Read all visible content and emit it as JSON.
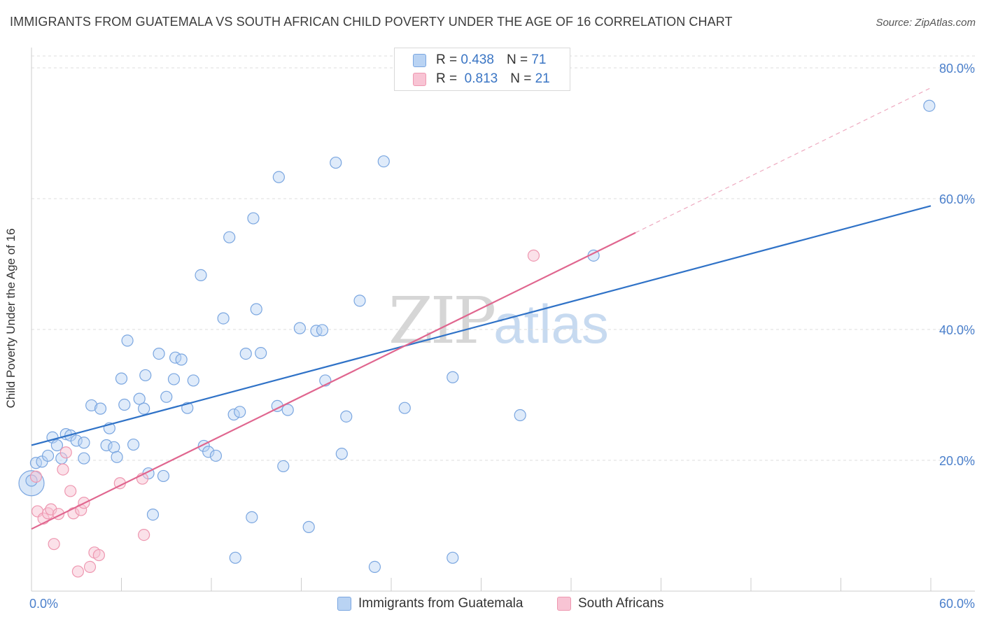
{
  "title": "IMMIGRANTS FROM GUATEMALA VS SOUTH AFRICAN CHILD POVERTY UNDER THE AGE OF 16 CORRELATION CHART",
  "source": "Source: ZipAtlas.com",
  "watermark": {
    "part1": "ZIP",
    "part2": "atlas"
  },
  "legend_top": {
    "rows": [
      {
        "r_label": "R =",
        "r_value": "0.438",
        "n_label": "N =",
        "n_value": "71"
      },
      {
        "r_label": "R =",
        "r_value": "0.813",
        "n_label": "N =",
        "n_value": "21"
      }
    ]
  },
  "colors": {
    "guatemala_fill": "#b9d3f3",
    "guatemala_stroke": "#7aa6e0",
    "guatemala_line": "#2f72c7",
    "sa_fill": "#f8c4d4",
    "sa_stroke": "#ee97b0",
    "sa_line": "#e0668f",
    "axis_label": "#4a7fcb",
    "grid": "#dddddd"
  },
  "chart_data": {
    "type": "scatter",
    "title": "IMMIGRANTS FROM GUATEMALA VS SOUTH AFRICAN CHILD POVERTY UNDER THE AGE OF 16 CORRELATION CHART",
    "xlabel": "",
    "ylabel": "Child Poverty Under the Age of 16",
    "xlim": [
      0,
      60
    ],
    "ylim": [
      0,
      80
    ],
    "x_tick_labels": [
      "0.0%",
      "60.0%"
    ],
    "y_tick_labels": [
      "20.0%",
      "40.0%",
      "60.0%",
      "80.0%"
    ],
    "y_ticks": [
      20,
      40,
      60,
      80
    ],
    "grid": true,
    "legend_position": "bottom",
    "series": [
      {
        "name": "Immigrants from Guatemala",
        "r": 0.438,
        "n": 71,
        "trend": {
          "x": [
            0,
            60
          ],
          "y": [
            22.3,
            58.9
          ],
          "extended": false
        },
        "points": [
          [
            0.0,
            16.5
          ],
          [
            0.3,
            19.6
          ],
          [
            0.7,
            19.8
          ],
          [
            1.1,
            20.7
          ],
          [
            1.4,
            23.5
          ],
          [
            1.7,
            22.3
          ],
          [
            2.0,
            20.3
          ],
          [
            2.3,
            24.0
          ],
          [
            2.6,
            23.8
          ],
          [
            3.0,
            23.0
          ],
          [
            3.5,
            22.7
          ],
          [
            3.5,
            20.3
          ],
          [
            4.0,
            28.4
          ],
          [
            4.6,
            27.9
          ],
          [
            5.0,
            22.3
          ],
          [
            5.2,
            24.9
          ],
          [
            5.5,
            22.0
          ],
          [
            5.7,
            20.5
          ],
          [
            6.0,
            32.5
          ],
          [
            6.2,
            28.5
          ],
          [
            6.4,
            38.3
          ],
          [
            6.8,
            22.4
          ],
          [
            7.2,
            29.4
          ],
          [
            7.5,
            27.9
          ],
          [
            7.6,
            33.0
          ],
          [
            7.8,
            18.0
          ],
          [
            8.1,
            11.7
          ],
          [
            8.5,
            36.3
          ],
          [
            8.8,
            17.6
          ],
          [
            9.0,
            29.7
          ],
          [
            9.5,
            32.4
          ],
          [
            9.6,
            35.7
          ],
          [
            10.0,
            35.4
          ],
          [
            10.4,
            28.0
          ],
          [
            10.8,
            32.2
          ],
          [
            11.3,
            48.3
          ],
          [
            11.5,
            22.2
          ],
          [
            11.8,
            21.3
          ],
          [
            12.3,
            20.7
          ],
          [
            12.8,
            41.7
          ],
          [
            13.2,
            54.1
          ],
          [
            13.5,
            27.0
          ],
          [
            13.6,
            5.1
          ],
          [
            13.9,
            27.4
          ],
          [
            14.3,
            36.3
          ],
          [
            14.7,
            11.3
          ],
          [
            14.8,
            57.0
          ],
          [
            15.0,
            43.1
          ],
          [
            15.3,
            36.4
          ],
          [
            16.4,
            28.3
          ],
          [
            16.5,
            63.3
          ],
          [
            16.8,
            19.1
          ],
          [
            17.1,
            27.7
          ],
          [
            17.9,
            40.2
          ],
          [
            18.5,
            9.8
          ],
          [
            19.0,
            39.8
          ],
          [
            19.4,
            39.9
          ],
          [
            19.6,
            32.2
          ],
          [
            20.3,
            65.5
          ],
          [
            20.7,
            21.0
          ],
          [
            21.0,
            26.7
          ],
          [
            21.9,
            44.4
          ],
          [
            22.9,
            3.7
          ],
          [
            23.5,
            65.7
          ],
          [
            24.9,
            28.0
          ],
          [
            28.1,
            32.7
          ],
          [
            28.1,
            5.1
          ],
          [
            32.6,
            26.9
          ],
          [
            37.5,
            51.3
          ],
          [
            59.9,
            74.2
          ],
          [
            0.0,
            16.9
          ]
        ]
      },
      {
        "name": "South Africans",
        "r": 0.813,
        "n": 21,
        "trend": {
          "x": [
            0,
            40.3
          ],
          "y": [
            9.5,
            54.8
          ],
          "extended_to_x": 60
        },
        "points": [
          [
            0.3,
            17.5
          ],
          [
            0.4,
            12.2
          ],
          [
            0.8,
            11.1
          ],
          [
            1.1,
            11.9
          ],
          [
            1.3,
            12.5
          ],
          [
            1.5,
            7.2
          ],
          [
            1.8,
            11.8
          ],
          [
            2.1,
            18.6
          ],
          [
            2.3,
            21.2
          ],
          [
            2.6,
            15.3
          ],
          [
            2.8,
            11.9
          ],
          [
            3.1,
            3.0
          ],
          [
            3.3,
            12.4
          ],
          [
            3.5,
            13.5
          ],
          [
            3.9,
            3.7
          ],
          [
            4.2,
            5.9
          ],
          [
            4.5,
            5.5
          ],
          [
            5.9,
            16.5
          ],
          [
            7.4,
            17.2
          ],
          [
            7.5,
            8.6
          ],
          [
            33.5,
            51.3
          ]
        ]
      }
    ]
  },
  "legend_bottom": [
    {
      "label": "Immigrants from Guatemala"
    },
    {
      "label": "South Africans"
    }
  ]
}
